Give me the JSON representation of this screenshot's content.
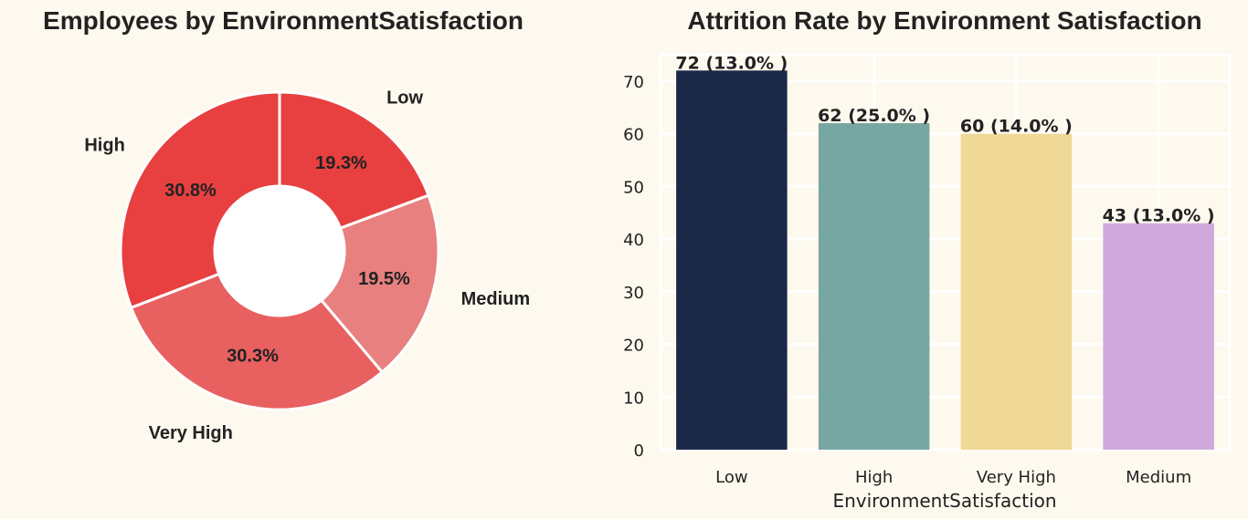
{
  "chart_data": [
    {
      "type": "pie",
      "donut": true,
      "title": "Employees by EnvironmentSatisfaction",
      "categories": [
        "Low",
        "Medium",
        "Very High",
        "High"
      ],
      "values": [
        19.3,
        19.5,
        30.3,
        30.8
      ],
      "labels": [
        "19.3%",
        "19.5%",
        "30.3%",
        "30.8%"
      ],
      "colors": [
        "#e84040",
        "#e88080",
        "#e86060",
        "#e84040"
      ]
    },
    {
      "type": "bar",
      "title": "Attrition Rate by Environment Satisfaction",
      "categories": [
        "Low",
        "High",
        "Very High",
        "Medium"
      ],
      "values": [
        72,
        62,
        60,
        43
      ],
      "data_labels": [
        "72 (13.0% )",
        "62 (25.0% )",
        "60 (14.0% )",
        "43 (13.0% )"
      ],
      "colors": [
        "#1b2848",
        "#78a6a0",
        "#f0d896",
        "#d0a8dc"
      ],
      "xlabel": "EnvironmentSatisfaction",
      "ylabel": "",
      "ylim": [
        0,
        75
      ],
      "yticks": [
        0,
        10,
        20,
        30,
        40,
        50,
        60,
        70
      ],
      "grid": true
    }
  ]
}
